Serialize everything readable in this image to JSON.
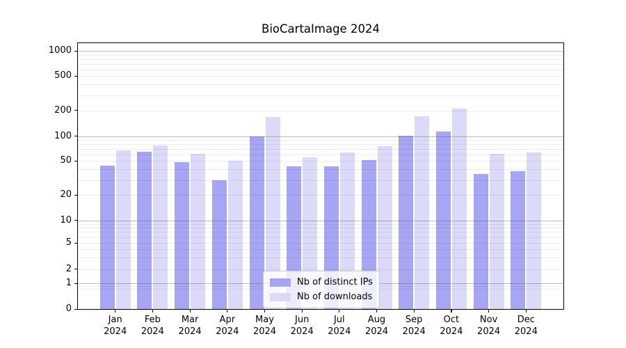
{
  "chart_data": {
    "type": "bar",
    "title": "BioCartaImage 2024",
    "yscale": "symlog",
    "ylim": [
      0,
      1000
    ],
    "grid": true,
    "legend_position": "lower center",
    "yticks": [
      0,
      1,
      2,
      5,
      10,
      20,
      50,
      100,
      200,
      500,
      1000
    ],
    "x_labels": [
      {
        "month": "Jan",
        "year": "2024"
      },
      {
        "month": "Feb",
        "year": "2024"
      },
      {
        "month": "Mar",
        "year": "2024"
      },
      {
        "month": "Apr",
        "year": "2024"
      },
      {
        "month": "May",
        "year": "2024"
      },
      {
        "month": "Jun",
        "year": "2024"
      },
      {
        "month": "Jul",
        "year": "2024"
      },
      {
        "month": "Aug",
        "year": "2024"
      },
      {
        "month": "Sep",
        "year": "2024"
      },
      {
        "month": "Oct",
        "year": "2024"
      },
      {
        "month": "Nov",
        "year": "2024"
      },
      {
        "month": "Dec",
        "year": "2024"
      }
    ],
    "series": [
      {
        "name": "Nb of distinct IPs",
        "color": "#a6a6f4",
        "values": [
          44,
          64,
          48,
          30,
          100,
          43,
          43,
          51,
          102,
          113,
          35,
          38
        ]
      },
      {
        "name": "Nb of downloads",
        "color": "#dbdbf9",
        "values": [
          67,
          77,
          61,
          50,
          167,
          55,
          63,
          75,
          170,
          212,
          61,
          63
        ]
      }
    ]
  }
}
